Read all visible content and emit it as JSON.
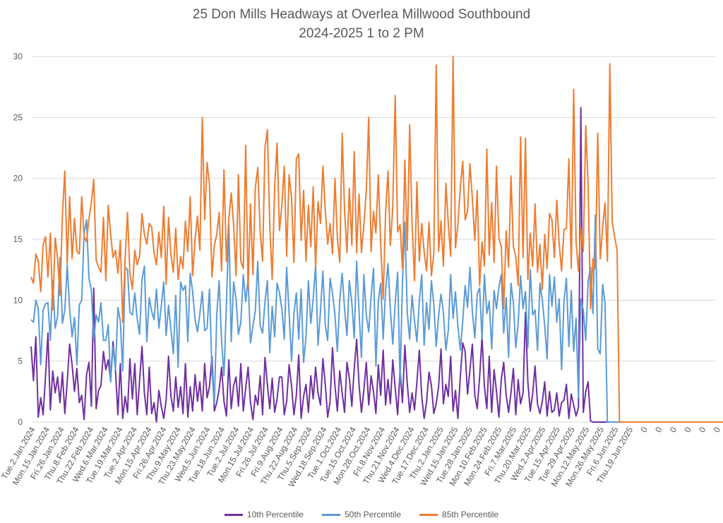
{
  "colors": {
    "p10": "#7030A0",
    "p50": "#5B9BD5",
    "p85": "#ED7D31",
    "grid": "#D9D9D9",
    "text": "#595959"
  },
  "chart_data": {
    "type": "line",
    "title": "25 Don Mills Headways at Overlea Millwood Southbound",
    "subtitle": "2024-2025 1 to 2 PM",
    "xlabel": "",
    "ylabel": "",
    "ylim": [
      0,
      30
    ],
    "yticks": [
      0,
      5,
      10,
      15,
      20,
      25,
      30
    ],
    "grid": true,
    "legend_position": "bottom",
    "x_tick_labels": [
      "Tue.2.Jan.2024",
      "Mon.15.Jan.2024",
      "Fri.26.Jan.2024",
      "Thu.8.Feb.2024",
      "Thu.22.Feb.2024",
      "Wed.6.Mar.2024",
      "Tue.19.Mar.2024",
      "Tue.2.Apr.2024",
      "Mon.15.Apr.2024",
      "Fri.26.Apr.2024",
      "Thu.9.May.2024",
      "Thu.23.May.2024",
      "Wed.5.Jun.2024",
      "Tue.18.Jun.2024",
      "Tue.2.Jul.2024",
      "Mon.15.Jul.2024",
      "Fri.26.Jul.2024",
      "Fri.9.Aug.2024",
      "Thu.22.Aug.2024",
      "Thu.5.Sep.2024",
      "Wed.18.Sep.2024",
      "Tue.1.Oct.2024",
      "Tue.15.Oct.2024",
      "Mon.28.Oct.2024",
      "Fri.8.Nov.2024",
      "Thu.21.Nov.2024",
      "Wed.4.Dec.2024",
      "Tue.17.Dec.2024",
      "Thu.2.Jan.2025",
      "Wed.15.Jan.2025",
      "Tue.28.Jan.2025",
      "Mon.10.Feb.2025",
      "Mon.24.Feb.2025",
      "Fri.7.Mar.2025",
      "Thu.20.Mar.2025",
      "Wed.2.Apr.2025",
      "Tue.15.Apr.2025",
      "Tue.29.Apr.2025",
      "Mon.12.May.2025",
      "Mon.26.May.2025",
      "Fri.6.Jun.2025",
      "Thu.19.Jun.2025",
      "0",
      "0",
      "0",
      "0",
      "0",
      "0",
      "0",
      "0",
      "0"
    ],
    "series": [
      {
        "name": "10th Percentile",
        "color": "#7030A0",
        "values": [
          6.2,
          3.4,
          7.0,
          0.4,
          2.0,
          0.6,
          3.8,
          7.3,
          1.0,
          4.2,
          2.4,
          3.7,
          1.6,
          4.1,
          0.7,
          3.3,
          6.4,
          4.7,
          2.5,
          4.4,
          1.6,
          2.2,
          0.2,
          3.9,
          4.9,
          1.3,
          11.0,
          1.1,
          2.6,
          3.0,
          5.8,
          4.3,
          5.1,
          3.4,
          6.6,
          4.3,
          0.6,
          4.8,
          0.3,
          2.1,
          0.8,
          5.2,
          1.9,
          4.8,
          0.6,
          3.4,
          6.2,
          2.4,
          0.6,
          4.5,
          0.7,
          1.6,
          0.0,
          2.6,
          1.3,
          0.3,
          1.8,
          5.4,
          2.1,
          0.9,
          3.7,
          1.2,
          2.9,
          0.7,
          4.8,
          0.4,
          2.9,
          0.9,
          3.9,
          1.7,
          3.3,
          0.9,
          4.8,
          2.0,
          2.9,
          5.4,
          0.9,
          1.6,
          2.7,
          4.5,
          1.7,
          0.5,
          5.1,
          1.1,
          3.0,
          3.7,
          1.3,
          4.8,
          0.9,
          2.8,
          4.5,
          1.6,
          0.2,
          2.2,
          1.4,
          3.8,
          0.6,
          5.3,
          3.1,
          1.1,
          3.6,
          0.8,
          1.9,
          3.7,
          3.7,
          0.6,
          1.7,
          4.7,
          3.0,
          0.6,
          2.2,
          5.5,
          0.3,
          2.1,
          3.1,
          0.8,
          3.8,
          1.9,
          4.5,
          2.4,
          1.4,
          5.2,
          3.1,
          0.4,
          1.7,
          6.1,
          3.0,
          0.9,
          4.2,
          2.4,
          0.8,
          4.9,
          3.6,
          1.3,
          4.4,
          6.8,
          3.1,
          0.8,
          2.6,
          4.9,
          1.4,
          3.8,
          2.5,
          0.7,
          4.7,
          2.2,
          5.9,
          1.4,
          3.5,
          1.5,
          5.1,
          2.8,
          0.6,
          4.3,
          1.6,
          6.3,
          3.2,
          0.8,
          2.4,
          1.0,
          3.3,
          5.9,
          2.1,
          0.3,
          1.6,
          4.1,
          3.0,
          0.7,
          1.5,
          2.9,
          6.0,
          1.5,
          3.1,
          2.1,
          5.4,
          0.9,
          2.6,
          0.3,
          3.8,
          6.5,
          5.8,
          2.3,
          4.3,
          6.4,
          2.2,
          1.1,
          3.7,
          7.0,
          2.9,
          1.1,
          5.4,
          0.8,
          4.3,
          2.5,
          0.4,
          3.5,
          4.9,
          2.2,
          0.8,
          2.4,
          4.4,
          0.6,
          3.5,
          1.5,
          2.4,
          9.0,
          3.3,
          0.9,
          2.3,
          4.6,
          1.5,
          0.7,
          1.7,
          3.3,
          0.5,
          2.5,
          0.8,
          1.0,
          2.4,
          0.5,
          1.6,
          1.8,
          3.1,
          0.3,
          2.3,
          1.4,
          0.5,
          1.2,
          25.8,
          0.8,
          2.5,
          3.3,
          0.1,
          0,
          0,
          0,
          0,
          0,
          0,
          0,
          0,
          0,
          0,
          0,
          0,
          0,
          0,
          0,
          0,
          0,
          0,
          0,
          0,
          0,
          0,
          0,
          0,
          0,
          0,
          0,
          0,
          0,
          0,
          0,
          0,
          0,
          0,
          0,
          0,
          0,
          0,
          0,
          0,
          0,
          0,
          0,
          0,
          0,
          0,
          0,
          0,
          0,
          0,
          0,
          0
        ]
      },
      {
        "name": "50th Percentile",
        "color": "#5B9BD5",
        "values": [
          8.4,
          8.2,
          10.0,
          9.3,
          4.7,
          9.2,
          9.7,
          9.8,
          6.7,
          11.6,
          7.7,
          8.7,
          13.5,
          8.1,
          9.2,
          12.9,
          9.3,
          7.0,
          8.6,
          4.7,
          9.6,
          10.0,
          15.5,
          16.6,
          11.8,
          10.8,
          6.7,
          8.8,
          8.2,
          9.8,
          6.7,
          6.7,
          8.0,
          3.3,
          6.2,
          4.3,
          9.4,
          8.3,
          4.2,
          12.7,
          12.5,
          9.0,
          8.8,
          10.6,
          8.5,
          7.2,
          11.7,
          12.8,
          6.6,
          10.2,
          9.1,
          8.4,
          10.9,
          7.7,
          9.5,
          11.5,
          7.1,
          9.6,
          7.6,
          5.6,
          10.4,
          4.5,
          11.5,
          10.8,
          11.2,
          6.6,
          12.2,
          10.7,
          8.4,
          7.4,
          8.9,
          10.7,
          7.5,
          7.7,
          10.9,
          4.2,
          1.5,
          8.8,
          11.6,
          6.7,
          3.8,
          9.7,
          16.2,
          6.6,
          11.5,
          10.1,
          7.2,
          8.2,
          12.1,
          9.9,
          11.8,
          6.5,
          7.9,
          9.1,
          13.2,
          7.9,
          7.3,
          9.9,
          11.6,
          5.7,
          9.5,
          7.0,
          11.4,
          10.6,
          9.3,
          6.8,
          12.7,
          8.9,
          5.0,
          8.9,
          10.6,
          6.8,
          10.9,
          4.9,
          7.0,
          11.6,
          8.1,
          10.1,
          12.9,
          6.3,
          9.1,
          12.4,
          8.0,
          6.7,
          11.8,
          10.6,
          8.8,
          5.8,
          10.0,
          12.2,
          9.3,
          7.1,
          11.6,
          9.8,
          6.9,
          13.2,
          9.1,
          5.3,
          12.1,
          8.8,
          7.4,
          10.3,
          12.6,
          4.6,
          9.9,
          11.4,
          6.8,
          10.8,
          13.0,
          9.2,
          6.4,
          9.7,
          12.3,
          3.2,
          11.5,
          16.4,
          9.0,
          6.8,
          10.4,
          8.3,
          6.6,
          9.9,
          12.1,
          6.3,
          9.8,
          7.6,
          11.6,
          9.7,
          6.2,
          8.7,
          10.5,
          9.0,
          5.9,
          7.5,
          12.1,
          8.5,
          10.7,
          7.9,
          5.9,
          8.3,
          11.2,
          9.4,
          12.7,
          9.1,
          6.9,
          10.5,
          11.0,
          6.8,
          12.1,
          8.9,
          9.9,
          6.0,
          10.8,
          9.3,
          11.1,
          12.1,
          7.3,
          10.2,
          5.3,
          11.4,
          9.8,
          6.1,
          8.1,
          12.0,
          9.3,
          10.7,
          6.1,
          12.5,
          8.8,
          9.2,
          5.9,
          11.4,
          10.0,
          7.9,
          5.2,
          12.1,
          9.5,
          11.9,
          8.2,
          10.1,
          4.3,
          9.9,
          11.8,
          6.2,
          10.8,
          5.8,
          8.5,
          2.0,
          10.1,
          9.2,
          6.7,
          11.6,
          12.7,
          8.9,
          17.0,
          6.0,
          5.6,
          11.3,
          9.8,
          0,
          0,
          0,
          0,
          0,
          0,
          0,
          0,
          0,
          0,
          0,
          0,
          0,
          0,
          0,
          0,
          0,
          0,
          0,
          0,
          0,
          0,
          0,
          0,
          0,
          0,
          0,
          0,
          0,
          0,
          0,
          0,
          0,
          0,
          0,
          0,
          0,
          0,
          0,
          0,
          0,
          0,
          0,
          0,
          0,
          0,
          0,
          0,
          0,
          0,
          0,
          0,
          0
        ]
      },
      {
        "name": "85th Percentile",
        "color": "#ED7D31",
        "values": [
          11.9,
          11.4,
          13.8,
          13.2,
          10.7,
          14.6,
          15.2,
          11.9,
          15.5,
          9.2,
          15.1,
          13.4,
          10.4,
          17.0,
          20.6,
          13.0,
          18.5,
          13.4,
          16.7,
          14.0,
          13.8,
          18.5,
          15.2,
          14.8,
          16.7,
          18.0,
          19.9,
          13.3,
          12.7,
          12.3,
          16.8,
          11.6,
          17.8,
          15.4,
          13.5,
          14.1,
          12.2,
          14.9,
          8.2,
          13.4,
          17.2,
          12.2,
          10.9,
          14.1,
          12.9,
          13.6,
          17.1,
          15.4,
          14.6,
          16.3,
          16.0,
          13.9,
          12.9,
          15.6,
          13.5,
          17.7,
          11.3,
          16.8,
          13.7,
          12.3,
          15.9,
          11.7,
          13.6,
          12.6,
          16.5,
          14.0,
          18.5,
          12.0,
          15.0,
          16.9,
          14.1,
          25.0,
          16.6,
          21.3,
          19.5,
          11.9,
          14.5,
          15.4,
          17.2,
          12.4,
          20.7,
          13.2,
          16.7,
          18.8,
          16.2,
          12.0,
          20.3,
          13.2,
          12.6,
          22.7,
          10.9,
          17.9,
          12.1,
          19.2,
          20.9,
          15.6,
          13.2,
          22.5,
          24.0,
          16.1,
          11.7,
          19.3,
          22.9,
          15.7,
          17.8,
          21.0,
          13.6,
          20.3,
          18.4,
          13.1,
          21.6,
          22.0,
          14.9,
          19.0,
          13.2,
          17.8,
          14.4,
          19.3,
          12.7,
          18.1,
          16.3,
          21.0,
          17.4,
          14.6,
          16.3,
          13.8,
          20.0,
          15.1,
          13.1,
          23.7,
          17.4,
          13.9,
          19.2,
          14.5,
          22.2,
          13.9,
          18.7,
          13.9,
          16.1,
          19.0,
          25.0,
          14.0,
          17.3,
          15.5,
          20.3,
          14.6,
          10.1,
          17.1,
          20.6,
          14.5,
          17.6,
          26.8,
          15.6,
          16.2,
          12.6,
          21.5,
          14.1,
          24.4,
          16.3,
          11.6,
          19.7,
          13.2,
          16.3,
          14.0,
          12.4,
          16.4,
          12.0,
          13.8,
          29.3,
          14.0,
          16.5,
          12.8,
          19.6,
          16.3,
          13.6,
          30.0,
          14.3,
          16.2,
          19.3,
          21.4,
          16.6,
          17.3,
          21.2,
          18.3,
          14.9,
          19.0,
          11.2,
          14.8,
          12.8,
          22.4,
          13.7,
          18.0,
          13.1,
          21.0,
          15.1,
          14.4,
          9.3,
          15.7,
          12.7,
          20.2,
          14.4,
          13.6,
          11.2,
          23.4,
          13.5,
          23.3,
          11.7,
          15.5,
          12.8,
          17.9,
          12.3,
          14.6,
          10.9,
          15.4,
          12.6,
          17.1,
          16.6,
          13.5,
          18.2,
          14.6,
          12.4,
          15.8,
          15.9,
          21.6,
          12.6,
          27.3,
          14.8,
          12.4,
          16.0,
          14.0,
          24.3,
          19.4,
          9.3,
          13.4,
          12.6,
          23.7,
          13.4,
          15.9,
          18.0,
          13.2,
          29.4,
          16.4,
          15.2,
          14.1,
          0,
          0,
          0,
          0,
          0,
          0,
          0,
          0,
          0,
          0,
          0,
          0,
          0,
          0,
          0,
          0,
          0,
          0,
          0,
          0,
          0,
          0,
          0,
          0,
          0,
          0,
          0,
          0,
          0,
          0,
          0,
          0,
          0,
          0,
          0,
          0,
          0,
          0,
          0,
          0,
          0,
          0,
          0,
          0,
          0,
          0,
          0,
          0,
          0,
          0,
          0,
          0,
          0,
          0
        ]
      }
    ]
  }
}
